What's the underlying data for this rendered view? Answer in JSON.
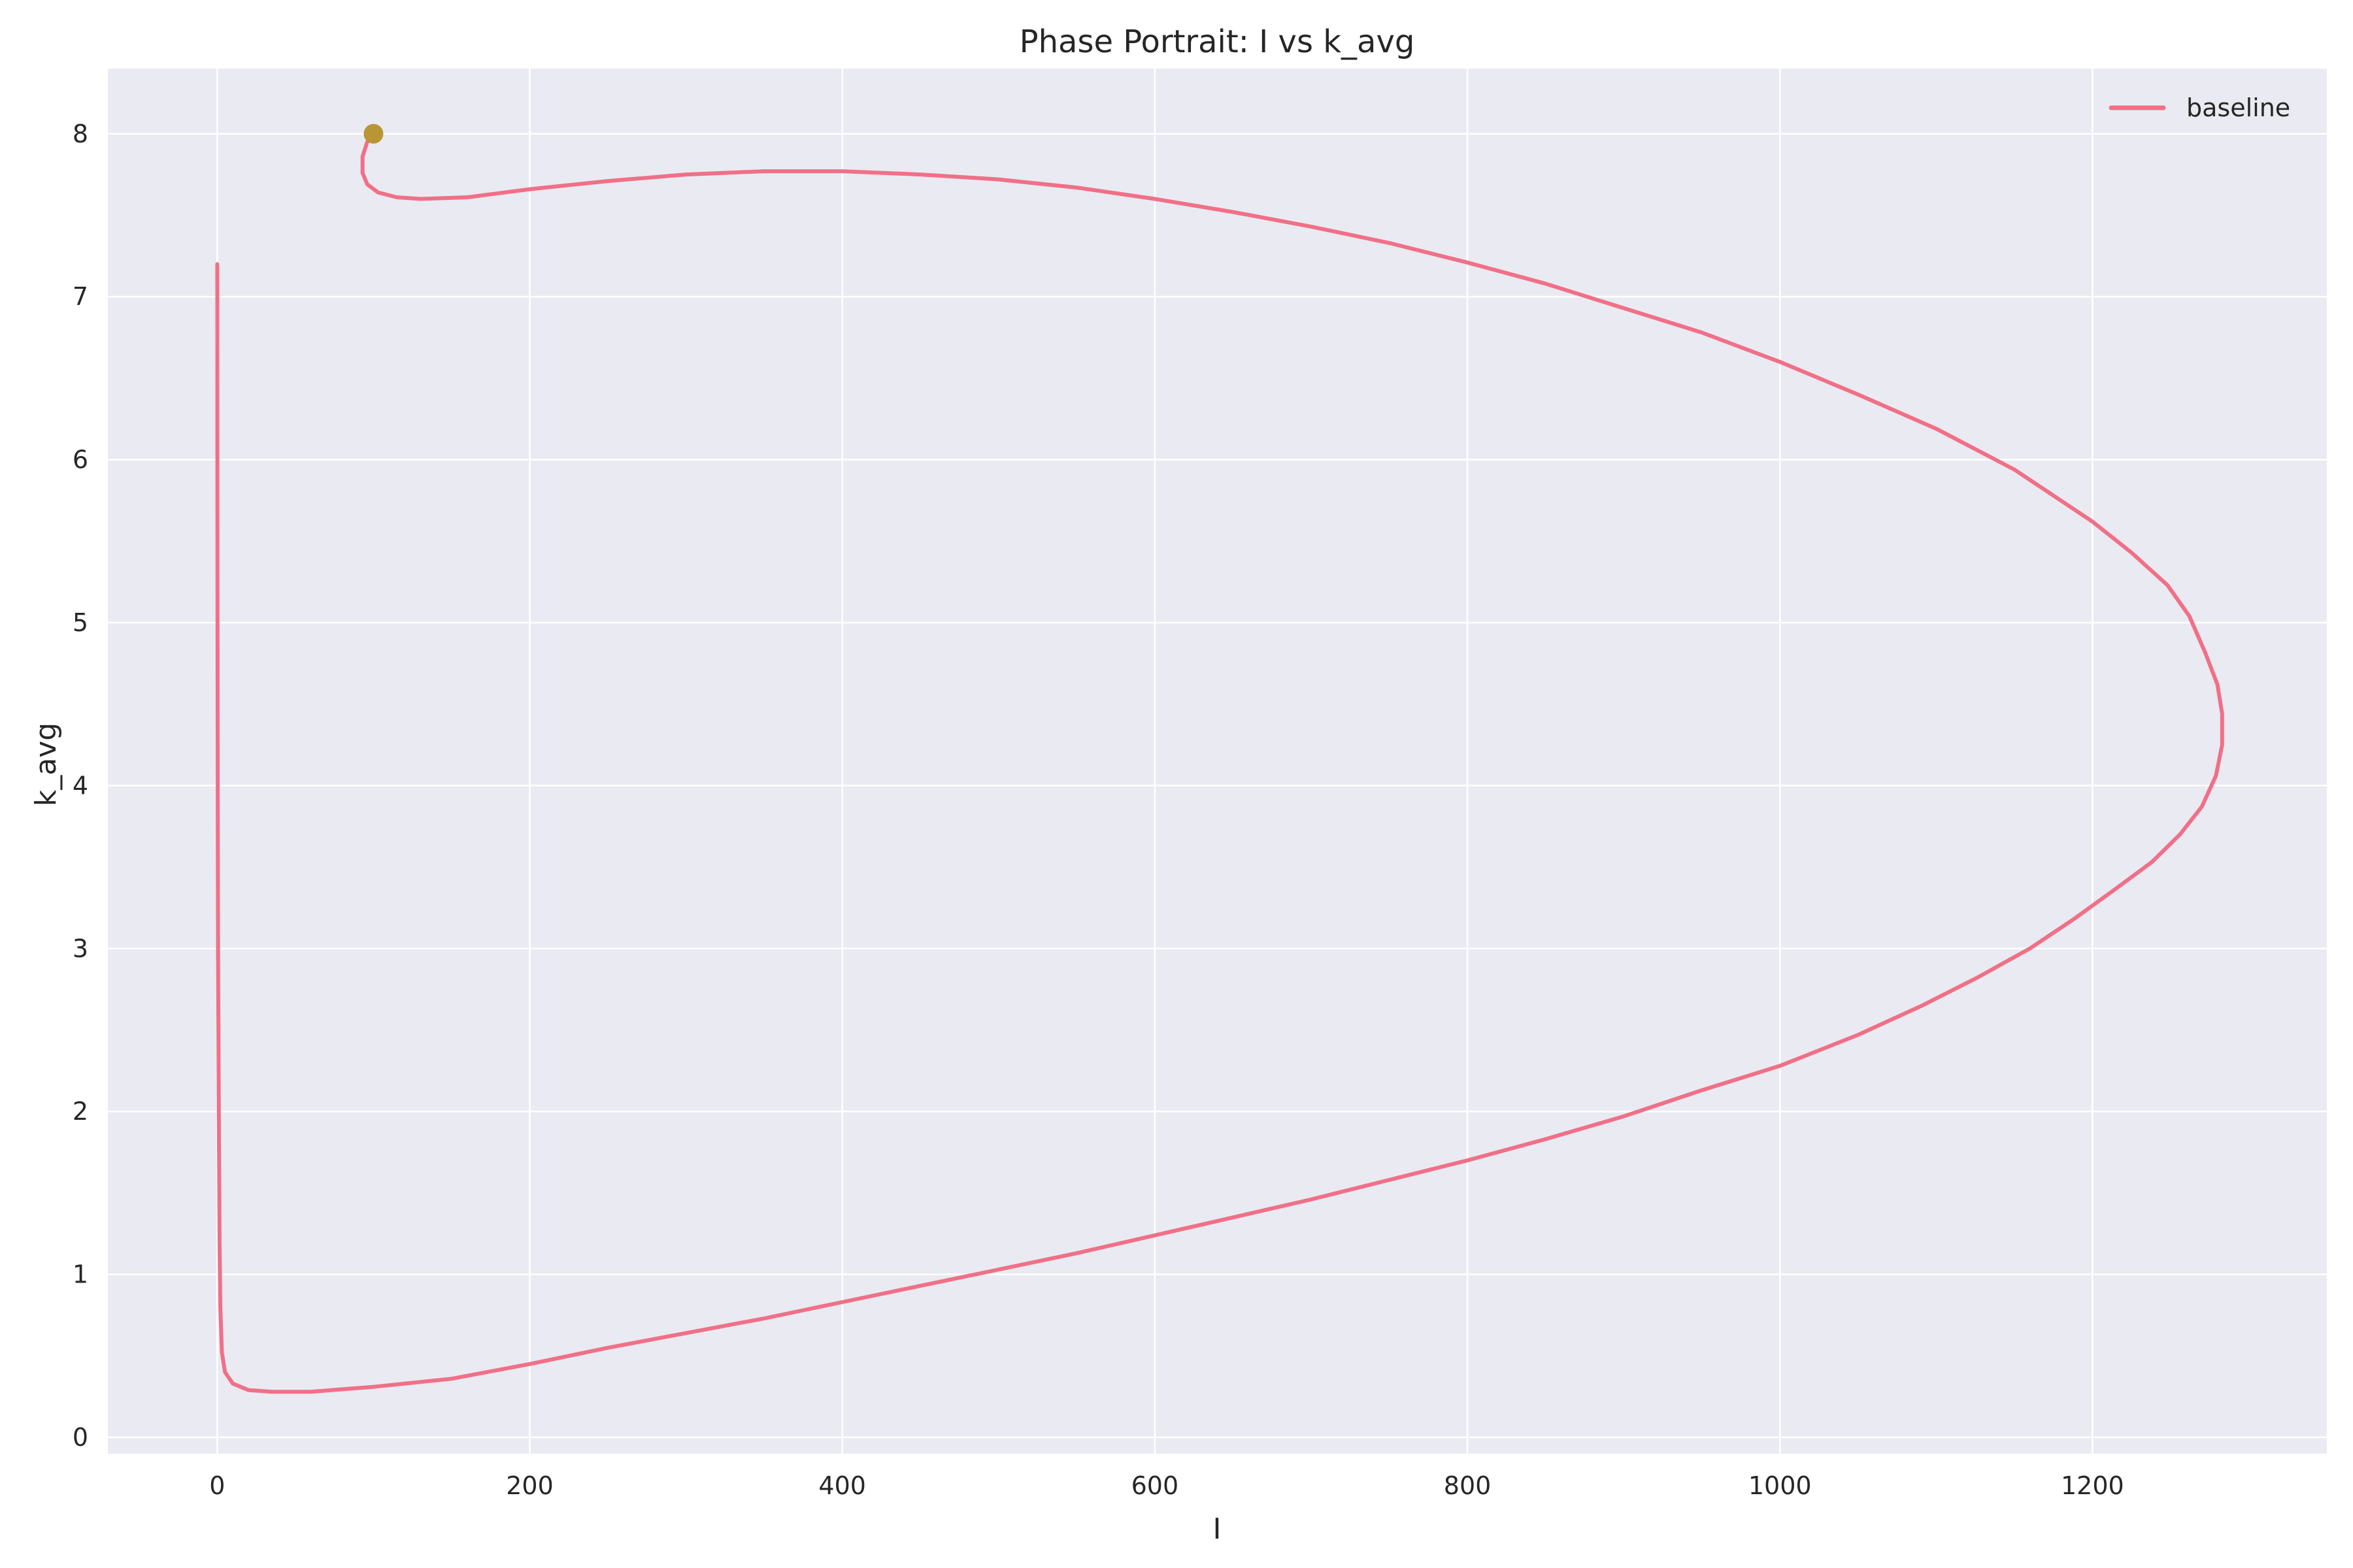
{
  "chart_data": {
    "type": "line",
    "title": "Phase Portrait: I vs k_avg",
    "xlabel": "I",
    "ylabel": "k_avg",
    "xlim": [
      -70,
      1350
    ],
    "ylim": [
      -0.1,
      8.4
    ],
    "x_ticks": [
      0,
      200,
      400,
      600,
      800,
      1000,
      1200
    ],
    "y_ticks": [
      0,
      1,
      2,
      3,
      4,
      5,
      6,
      7,
      8
    ],
    "grid": true,
    "legend_position": "top-right",
    "colors": {
      "baseline": "#f07087",
      "start_marker": "#b89535",
      "plot_bg": "#eaeaf2",
      "grid": "#ffffff"
    },
    "series": [
      {
        "name": "baseline",
        "x": [
          100,
          96,
          93,
          93,
          96,
          103,
          115,
          130,
          160,
          200,
          250,
          300,
          350,
          400,
          450,
          500,
          550,
          600,
          650,
          700,
          750,
          800,
          850,
          900,
          950,
          1000,
          1050,
          1100,
          1150,
          1200,
          1225,
          1248,
          1262,
          1272,
          1280,
          1283,
          1283,
          1279,
          1270,
          1256,
          1238,
          1214,
          1188,
          1160,
          1126,
          1091,
          1050,
          1000,
          950,
          900,
          850,
          800,
          750,
          700,
          650,
          600,
          550,
          500,
          450,
          400,
          350,
          300,
          250,
          200,
          150,
          100,
          60,
          35,
          20,
          10,
          5,
          3,
          2,
          1.5,
          1,
          0.5,
          0.3,
          0.2,
          0.1,
          0.05,
          0
        ],
        "y": [
          8.0,
          7.95,
          7.86,
          7.76,
          7.69,
          7.64,
          7.61,
          7.6,
          7.61,
          7.66,
          7.71,
          7.75,
          7.77,
          7.77,
          7.75,
          7.72,
          7.67,
          7.6,
          7.52,
          7.43,
          7.33,
          7.21,
          7.08,
          6.93,
          6.78,
          6.6,
          6.4,
          6.19,
          5.94,
          5.62,
          5.43,
          5.23,
          5.04,
          4.82,
          4.62,
          4.44,
          4.25,
          4.06,
          3.87,
          3.7,
          3.53,
          3.36,
          3.18,
          3.0,
          2.82,
          2.65,
          2.47,
          2.28,
          2.13,
          1.97,
          1.83,
          1.7,
          1.58,
          1.46,
          1.35,
          1.24,
          1.13,
          1.03,
          0.93,
          0.83,
          0.73,
          0.64,
          0.55,
          0.45,
          0.36,
          0.31,
          0.28,
          0.28,
          0.29,
          0.33,
          0.4,
          0.52,
          0.8,
          1.2,
          2.0,
          3.0,
          4.0,
          5.0,
          6.0,
          7.0,
          7.2
        ]
      }
    ],
    "start_point": {
      "x": 100,
      "y": 8.0
    }
  }
}
